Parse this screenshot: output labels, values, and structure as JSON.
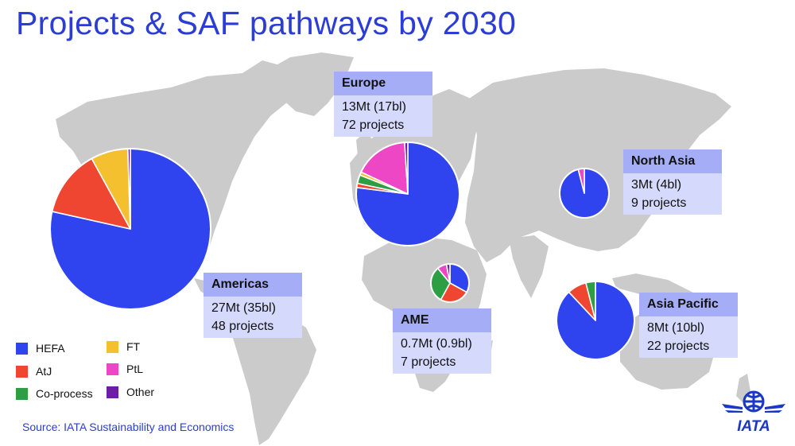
{
  "title": "Projects & SAF pathways by 2030",
  "source": "Source: IATA Sustainability and Economics",
  "logo_text": "IATA",
  "colors": {
    "accent": "#2b3dd6",
    "map_land": "#cbcbcb",
    "box_header": "#a5adf6",
    "box_body": "#d5d9fb"
  },
  "legend": [
    {
      "name": "HEFA",
      "color": "#2f44ee"
    },
    {
      "name": "AtJ",
      "color": "#ee4630"
    },
    {
      "name": "Co-process",
      "color": "#2e9e45"
    },
    {
      "name": "FT",
      "color": "#f5c030"
    },
    {
      "name": "PtL",
      "color": "#ee47c5"
    },
    {
      "name": "Other",
      "color": "#6a1fa6"
    }
  ],
  "chart_data": {
    "type": "pie",
    "title": "Projects & SAF pathways by 2030",
    "categories": [
      "HEFA",
      "AtJ",
      "Co-process",
      "FT",
      "PtL",
      "Other"
    ],
    "pies": [
      {
        "region": "Americas",
        "volume": "27Mt (35bl)",
        "projects": "48 projects",
        "values": [
          78.5,
          13.5,
          0,
          7.5,
          0,
          0.5
        ]
      },
      {
        "region": "Europe",
        "volume": "13Mt (17bl)",
        "projects": "72 projects",
        "values": [
          77,
          1.3,
          2.7,
          1,
          17,
          1
        ]
      },
      {
        "region": "North Asia",
        "volume": "3Mt (4bl)",
        "projects": "9 projects",
        "values": [
          96,
          0,
          0,
          0,
          4,
          0
        ]
      },
      {
        "region": "AME",
        "volume": "0.7Mt (0.9bl)",
        "projects": "7 projects",
        "values": [
          33,
          25,
          31,
          0,
          8,
          3
        ]
      },
      {
        "region": "Asia Pacific",
        "volume": "8Mt (10bl)",
        "projects": "22 projects",
        "values": [
          88,
          8,
          4,
          0,
          0,
          0
        ]
      }
    ]
  }
}
